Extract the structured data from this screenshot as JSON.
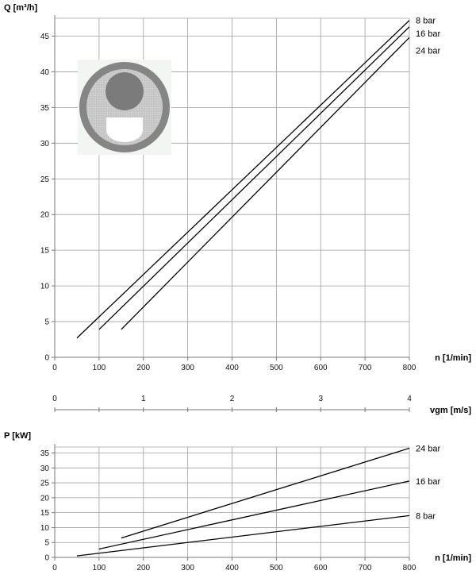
{
  "chart_data": [
    {
      "type": "line",
      "ylabel": "Q [m³/h]",
      "xlabel": "n [1/min]",
      "xlim": [
        0,
        800
      ],
      "ylim": [
        0,
        47.5
      ],
      "xticks": [
        0,
        100,
        200,
        300,
        400,
        500,
        600,
        700,
        800
      ],
      "yticks": [
        0,
        5,
        10,
        15,
        20,
        25,
        30,
        35,
        40,
        45
      ],
      "grid": true,
      "series": [
        {
          "name": "8 bar",
          "x": [
            50,
            800
          ],
          "y": [
            2.7,
            47.2
          ]
        },
        {
          "name": "16 bar",
          "x": [
            100,
            800
          ],
          "y": [
            3.9,
            46.3
          ]
        },
        {
          "name": "24 bar",
          "x": [
            150,
            800
          ],
          "y": [
            3.9,
            44.8
          ]
        }
      ]
    },
    {
      "type": "axis",
      "xlabel": "vgm [m/s]",
      "xlim": [
        0,
        4
      ],
      "xticks": [
        0,
        1,
        2,
        3,
        4
      ]
    },
    {
      "type": "line",
      "ylabel": "P [kW]",
      "xlabel": "n [1/min]",
      "xlim": [
        0,
        800
      ],
      "ylim": [
        0,
        37
      ],
      "xticks": [
        0,
        100,
        200,
        300,
        400,
        500,
        600,
        700,
        800
      ],
      "yticks": [
        0,
        5,
        10,
        15,
        20,
        25,
        30,
        35
      ],
      "grid": true,
      "series": [
        {
          "name": "24 bar",
          "x": [
            150,
            800
          ],
          "y": [
            6.5,
            36.6
          ]
        },
        {
          "name": "16 bar",
          "x": [
            100,
            800
          ],
          "y": [
            2.8,
            25.6
          ]
        },
        {
          "name": "8 bar",
          "x": [
            50,
            800
          ],
          "y": [
            0.5,
            14.0
          ]
        }
      ]
    }
  ],
  "colors": {
    "line": "#000000",
    "grid": "#a0a0a0",
    "axis": "#777777",
    "emblem_ring": "#858585",
    "emblem_disc": "#c3c3c3",
    "emblem_ball": "#7b7b7b"
  },
  "emblem": {
    "icon": "ball-valve-cross-section-icon"
  }
}
